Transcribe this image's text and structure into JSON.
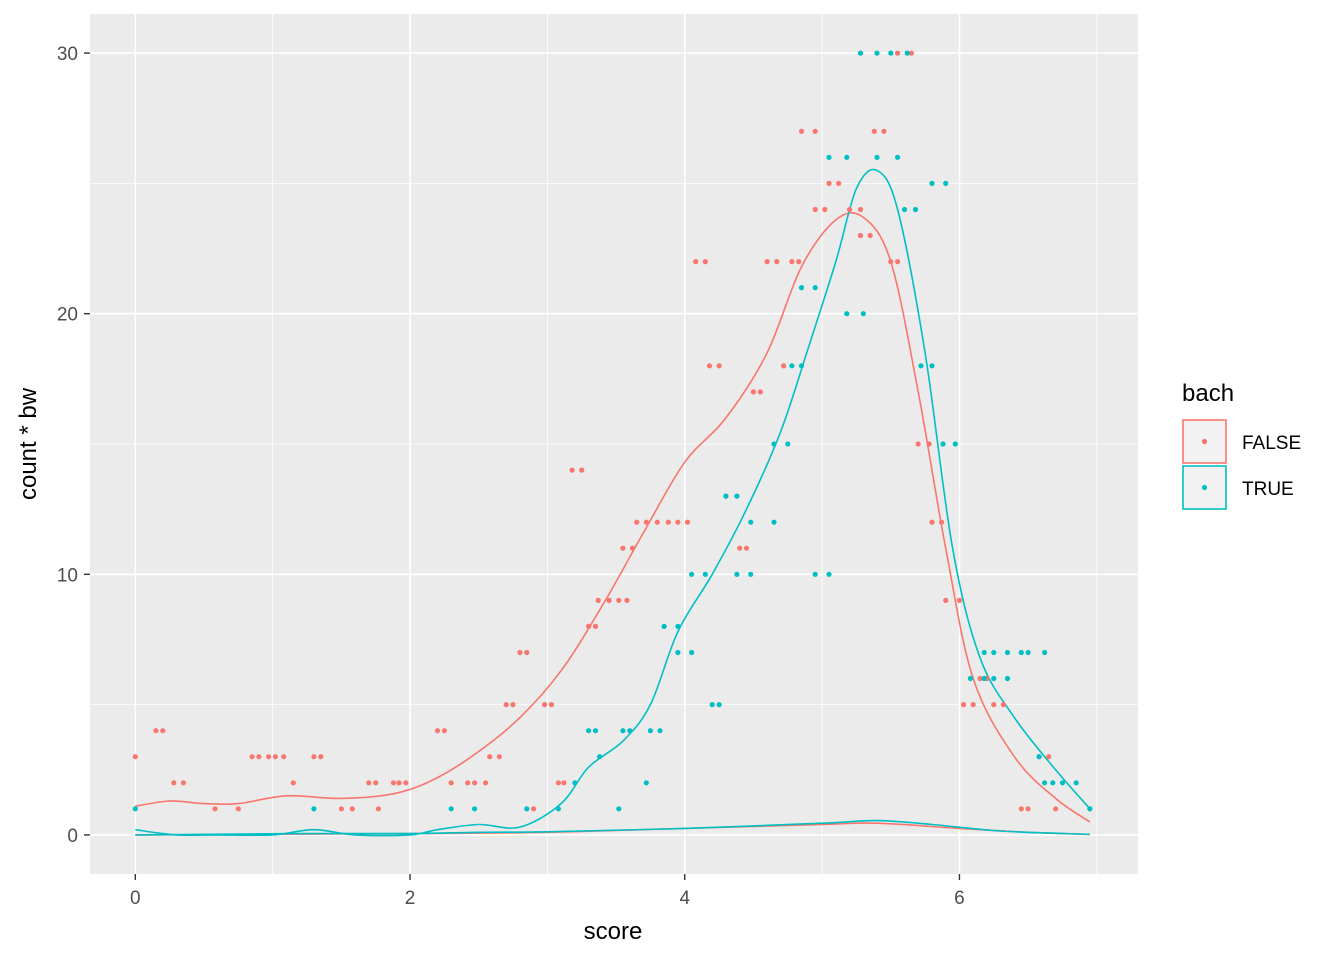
{
  "chart_data": {
    "type": "scatter",
    "xlabel": "score",
    "ylabel": "count * bw",
    "xlim": [
      -0.33,
      7.3
    ],
    "ylim": [
      -1.5,
      31.5
    ],
    "x_ticks": [
      0,
      2,
      4,
      6
    ],
    "y_ticks": [
      0,
      10,
      20,
      30
    ],
    "x_tick_labels": [
      "0",
      "2",
      "4",
      "6"
    ],
    "y_tick_labels": [
      "0",
      "10",
      "20",
      "30"
    ],
    "grid": true,
    "legend": {
      "title": "bach",
      "position": "right"
    },
    "series": [
      {
        "name": "FALSE",
        "color": "#F8766D",
        "points": [
          [
            0.0,
            3
          ],
          [
            0.15,
            4
          ],
          [
            0.2,
            4
          ],
          [
            0.28,
            2
          ],
          [
            0.35,
            2
          ],
          [
            0.58,
            1
          ],
          [
            0.75,
            1
          ],
          [
            0.85,
            3
          ],
          [
            0.9,
            3
          ],
          [
            0.97,
            3
          ],
          [
            1.02,
            3
          ],
          [
            1.08,
            3
          ],
          [
            1.15,
            2
          ],
          [
            1.3,
            3
          ],
          [
            1.35,
            3
          ],
          [
            1.5,
            1
          ],
          [
            1.58,
            1
          ],
          [
            1.7,
            2
          ],
          [
            1.75,
            2
          ],
          [
            1.77,
            1
          ],
          [
            1.88,
            2
          ],
          [
            1.92,
            2
          ],
          [
            1.97,
            2
          ],
          [
            2.2,
            4
          ],
          [
            2.25,
            4
          ],
          [
            2.3,
            2
          ],
          [
            2.42,
            2
          ],
          [
            2.47,
            2
          ],
          [
            2.55,
            2
          ],
          [
            2.58,
            3
          ],
          [
            2.65,
            3
          ],
          [
            2.7,
            5
          ],
          [
            2.75,
            5
          ],
          [
            2.8,
            7
          ],
          [
            2.85,
            7
          ],
          [
            2.9,
            1
          ],
          [
            2.98,
            5
          ],
          [
            3.03,
            5
          ],
          [
            3.08,
            2
          ],
          [
            3.12,
            2
          ],
          [
            3.18,
            14
          ],
          [
            3.25,
            14
          ],
          [
            3.3,
            8
          ],
          [
            3.35,
            8
          ],
          [
            3.37,
            9
          ],
          [
            3.45,
            9
          ],
          [
            3.52,
            9
          ],
          [
            3.58,
            9
          ],
          [
            3.55,
            11
          ],
          [
            3.62,
            11
          ],
          [
            3.65,
            12
          ],
          [
            3.72,
            12
          ],
          [
            3.8,
            12
          ],
          [
            3.88,
            12
          ],
          [
            3.95,
            12
          ],
          [
            4.02,
            12
          ],
          [
            4.08,
            22
          ],
          [
            4.15,
            22
          ],
          [
            4.18,
            18
          ],
          [
            4.25,
            18
          ],
          [
            4.3,
            13
          ],
          [
            4.4,
            11
          ],
          [
            4.45,
            11
          ],
          [
            4.5,
            17
          ],
          [
            4.55,
            17
          ],
          [
            4.6,
            22
          ],
          [
            4.67,
            22
          ],
          [
            4.72,
            18
          ],
          [
            4.78,
            22
          ],
          [
            4.83,
            22
          ],
          [
            4.85,
            27
          ],
          [
            4.95,
            27
          ],
          [
            4.95,
            24
          ],
          [
            5.02,
            24
          ],
          [
            5.05,
            25
          ],
          [
            5.12,
            25
          ],
          [
            5.2,
            24
          ],
          [
            5.28,
            24
          ],
          [
            5.28,
            23
          ],
          [
            5.35,
            23
          ],
          [
            5.38,
            27
          ],
          [
            5.45,
            27
          ],
          [
            5.5,
            22
          ],
          [
            5.55,
            22
          ],
          [
            5.55,
            30
          ],
          [
            5.65,
            30
          ],
          [
            5.7,
            15
          ],
          [
            5.78,
            15
          ],
          [
            5.8,
            12
          ],
          [
            5.87,
            12
          ],
          [
            5.9,
            9
          ],
          [
            6.0,
            9
          ],
          [
            6.03,
            5
          ],
          [
            6.1,
            5
          ],
          [
            6.15,
            6
          ],
          [
            6.2,
            6
          ],
          [
            6.25,
            5
          ],
          [
            6.32,
            5
          ],
          [
            6.45,
            1
          ],
          [
            6.5,
            1
          ],
          [
            6.58,
            3
          ],
          [
            6.65,
            3
          ],
          [
            6.7,
            1
          ]
        ],
        "count_curve": [
          [
            0.0,
            1.1
          ],
          [
            0.25,
            1.3
          ],
          [
            0.5,
            1.2
          ],
          [
            0.75,
            1.2
          ],
          [
            1.1,
            1.5
          ],
          [
            1.5,
            1.4
          ],
          [
            1.9,
            1.6
          ],
          [
            2.2,
            2.2
          ],
          [
            2.5,
            3.2
          ],
          [
            2.8,
            4.5
          ],
          [
            3.1,
            6.3
          ],
          [
            3.4,
            8.8
          ],
          [
            3.7,
            11.6
          ],
          [
            4.0,
            14.3
          ],
          [
            4.3,
            16.0
          ],
          [
            4.6,
            18.5
          ],
          [
            4.85,
            21.8
          ],
          [
            5.1,
            23.6
          ],
          [
            5.3,
            23.7
          ],
          [
            5.5,
            22.0
          ],
          [
            5.7,
            17.0
          ],
          [
            5.9,
            11.0
          ],
          [
            6.1,
            6.0
          ],
          [
            6.4,
            3.0
          ],
          [
            6.7,
            1.4
          ],
          [
            6.95,
            0.5
          ]
        ],
        "scaled_curve": [
          [
            0.0,
            0.0
          ],
          [
            2.0,
            0.05
          ],
          [
            3.0,
            0.1
          ],
          [
            4.0,
            0.25
          ],
          [
            5.0,
            0.4
          ],
          [
            5.4,
            0.45
          ],
          [
            6.0,
            0.25
          ],
          [
            6.5,
            0.1
          ],
          [
            6.95,
            0.02
          ]
        ]
      },
      {
        "name": "TRUE",
        "color": "#00BFC4",
        "points": [
          [
            0.0,
            1
          ],
          [
            1.3,
            1
          ],
          [
            2.3,
            1
          ],
          [
            2.47,
            1
          ],
          [
            2.85,
            1
          ],
          [
            3.08,
            1
          ],
          [
            3.2,
            2
          ],
          [
            3.3,
            4
          ],
          [
            3.35,
            4
          ],
          [
            3.38,
            3
          ],
          [
            3.52,
            1
          ],
          [
            3.55,
            4
          ],
          [
            3.6,
            4
          ],
          [
            3.72,
            2
          ],
          [
            3.75,
            4
          ],
          [
            3.82,
            4
          ],
          [
            3.85,
            8
          ],
          [
            3.95,
            8
          ],
          [
            3.95,
            7
          ],
          [
            4.05,
            7
          ],
          [
            4.05,
            10
          ],
          [
            4.15,
            10
          ],
          [
            4.2,
            5
          ],
          [
            4.25,
            5
          ],
          [
            4.3,
            13
          ],
          [
            4.38,
            13
          ],
          [
            4.38,
            10
          ],
          [
            4.48,
            10
          ],
          [
            4.48,
            12
          ],
          [
            4.65,
            12
          ],
          [
            4.65,
            15
          ],
          [
            4.75,
            15
          ],
          [
            4.78,
            18
          ],
          [
            4.85,
            18
          ],
          [
            4.85,
            21
          ],
          [
            4.95,
            21
          ],
          [
            4.95,
            10
          ],
          [
            5.05,
            10
          ],
          [
            5.05,
            26
          ],
          [
            5.18,
            26
          ],
          [
            5.18,
            20
          ],
          [
            5.3,
            20
          ],
          [
            5.28,
            30
          ],
          [
            5.4,
            30
          ],
          [
            5.4,
            26
          ],
          [
            5.55,
            26
          ],
          [
            5.5,
            30
          ],
          [
            5.62,
            30
          ],
          [
            5.6,
            24
          ],
          [
            5.68,
            24
          ],
          [
            5.72,
            18
          ],
          [
            5.8,
            18
          ],
          [
            5.8,
            25
          ],
          [
            5.9,
            25
          ],
          [
            5.88,
            15
          ],
          [
            5.97,
            15
          ],
          [
            6.08,
            6
          ],
          [
            6.18,
            6
          ],
          [
            6.18,
            7
          ],
          [
            6.25,
            7
          ],
          [
            6.25,
            6
          ],
          [
            6.35,
            6
          ],
          [
            6.35,
            7
          ],
          [
            6.45,
            7
          ],
          [
            6.5,
            7
          ],
          [
            6.62,
            7
          ],
          [
            6.58,
            3
          ],
          [
            6.62,
            2
          ],
          [
            6.68,
            2
          ],
          [
            6.75,
            2
          ],
          [
            6.85,
            2
          ],
          [
            6.95,
            1
          ]
        ],
        "count_curve": [
          [
            0.0,
            0.2
          ],
          [
            0.3,
            0.0
          ],
          [
            0.6,
            0.0
          ],
          [
            1.0,
            0.0
          ],
          [
            1.3,
            0.2
          ],
          [
            1.6,
            0.0
          ],
          [
            2.0,
            0.0
          ],
          [
            2.2,
            0.2
          ],
          [
            2.5,
            0.4
          ],
          [
            2.8,
            0.3
          ],
          [
            3.1,
            1.2
          ],
          [
            3.3,
            2.6
          ],
          [
            3.55,
            3.6
          ],
          [
            3.75,
            5.0
          ],
          [
            3.95,
            7.8
          ],
          [
            4.2,
            10.0
          ],
          [
            4.45,
            12.5
          ],
          [
            4.7,
            15.5
          ],
          [
            4.9,
            18.7
          ],
          [
            5.1,
            22.0
          ],
          [
            5.25,
            24.8
          ],
          [
            5.4,
            25.5
          ],
          [
            5.55,
            24.0
          ],
          [
            5.75,
            18.5
          ],
          [
            5.95,
            11.0
          ],
          [
            6.15,
            6.8
          ],
          [
            6.4,
            4.5
          ],
          [
            6.7,
            2.5
          ],
          [
            6.95,
            1.0
          ]
        ],
        "scaled_curve": [
          [
            0.0,
            0.0
          ],
          [
            1.2,
            0.05
          ],
          [
            2.0,
            0.05
          ],
          [
            2.5,
            0.1
          ],
          [
            3.0,
            0.12
          ],
          [
            4.0,
            0.25
          ],
          [
            5.0,
            0.45
          ],
          [
            5.4,
            0.55
          ],
          [
            5.8,
            0.4
          ],
          [
            6.3,
            0.15
          ],
          [
            6.95,
            0.02
          ]
        ]
      }
    ]
  }
}
